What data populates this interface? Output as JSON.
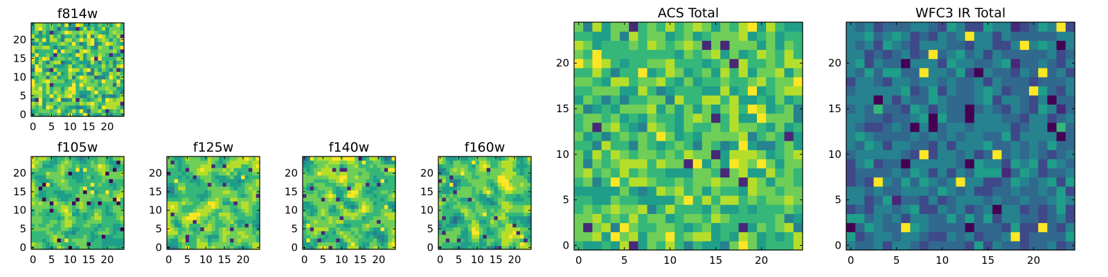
{
  "colors": {
    "colormap": [
      "#440154",
      "#482878",
      "#3e4989",
      "#31688e",
      "#26828e",
      "#1f9e89",
      "#35b779",
      "#6ece58",
      "#b5de2b",
      "#fde725"
    ]
  },
  "chart_data": [
    {
      "type": "heatmap",
      "title": "f814w",
      "grid": [
        25,
        25
      ],
      "xlim": [
        0,
        24
      ],
      "ylim": [
        0,
        24
      ],
      "xticks": [
        0,
        5,
        10,
        15,
        20
      ],
      "xtick_labels": [
        "0",
        "5",
        "10",
        "15",
        "20"
      ],
      "yticks": [
        0,
        5,
        10,
        15,
        20
      ],
      "ytick_labels": [
        "0",
        "5",
        "10",
        "15",
        "20"
      ],
      "value_range": [
        0,
        1
      ],
      "mean": 0.72,
      "spread": 0.3,
      "smooth": 0,
      "seed": 11
    },
    {
      "type": "heatmap",
      "title": "f105w",
      "grid": [
        25,
        25
      ],
      "xlim": [
        0,
        24
      ],
      "ylim": [
        0,
        24
      ],
      "xticks": [
        0,
        5,
        10,
        15,
        20
      ],
      "xtick_labels": [
        "0",
        "5",
        "10",
        "15",
        "20"
      ],
      "yticks": [
        0,
        5,
        10,
        15,
        20
      ],
      "ytick_labels": [
        "0",
        "5",
        "10",
        "15",
        "20"
      ],
      "value_range": [
        0,
        1
      ],
      "mean": 0.7,
      "spread": 0.28,
      "smooth": 1,
      "seed": 23
    },
    {
      "type": "heatmap",
      "title": "f125w",
      "grid": [
        25,
        25
      ],
      "xlim": [
        0,
        24
      ],
      "ylim": [
        0,
        24
      ],
      "xticks": [
        0,
        5,
        10,
        15,
        20
      ],
      "xtick_labels": [
        "0",
        "5",
        "10",
        "15",
        "20"
      ],
      "yticks": [
        0,
        5,
        10,
        15,
        20
      ],
      "ytick_labels": [
        "0",
        "5",
        "10",
        "15",
        "20"
      ],
      "value_range": [
        0,
        1
      ],
      "mean": 0.74,
      "spread": 0.3,
      "smooth": 1,
      "seed": 37
    },
    {
      "type": "heatmap",
      "title": "f140w",
      "grid": [
        25,
        25
      ],
      "xlim": [
        0,
        24
      ],
      "ylim": [
        0,
        24
      ],
      "xticks": [
        0,
        5,
        10,
        15,
        20
      ],
      "xtick_labels": [
        "0",
        "5",
        "10",
        "15",
        "20"
      ],
      "yticks": [
        0,
        5,
        10,
        15,
        20
      ],
      "ytick_labels": [
        "0",
        "5",
        "10",
        "15",
        "20"
      ],
      "value_range": [
        0,
        1
      ],
      "mean": 0.72,
      "spread": 0.32,
      "smooth": 1,
      "seed": 41
    },
    {
      "type": "heatmap",
      "title": "f160w",
      "grid": [
        25,
        25
      ],
      "xlim": [
        0,
        24
      ],
      "ylim": [
        0,
        24
      ],
      "xticks": [
        0,
        5,
        10,
        15,
        20
      ],
      "xtick_labels": [
        "0",
        "5",
        "10",
        "15",
        "20"
      ],
      "yticks": [
        0,
        5,
        10,
        15,
        20
      ],
      "ytick_labels": [
        "0",
        "5",
        "10",
        "15",
        "20"
      ],
      "value_range": [
        0,
        1
      ],
      "mean": 0.72,
      "spread": 0.32,
      "smooth": 1,
      "seed": 53
    },
    {
      "type": "heatmap",
      "title": "ACS Total",
      "grid": [
        25,
        25
      ],
      "xlim": [
        0,
        24
      ],
      "ylim": [
        0,
        24
      ],
      "xticks": [
        0,
        5,
        10,
        15,
        20
      ],
      "xtick_labels": [
        "0",
        "5",
        "10",
        "15",
        "20"
      ],
      "yticks": [
        0,
        5,
        10,
        15,
        20
      ],
      "ytick_labels": [
        "0",
        "5",
        "10",
        "15",
        "20"
      ],
      "value_range": [
        0,
        1
      ],
      "mean": 0.72,
      "spread": 0.22,
      "smooth": 0,
      "seed": 67
    },
    {
      "type": "heatmap",
      "title": "WFC3 IR Total",
      "grid": [
        25,
        25
      ],
      "xlim": [
        0,
        24
      ],
      "ylim": [
        0,
        24
      ],
      "xticks": [
        0,
        5,
        10,
        15,
        20
      ],
      "xtick_labels": [
        "0",
        "5",
        "10",
        "15",
        "20"
      ],
      "yticks": [
        0,
        5,
        10,
        15,
        20
      ],
      "ytick_labels": [
        "0",
        "5",
        "10",
        "15",
        "20"
      ],
      "value_range": [
        0,
        1
      ],
      "mean": 0.38,
      "spread": 0.18,
      "smooth": 0,
      "seed": 79
    }
  ]
}
